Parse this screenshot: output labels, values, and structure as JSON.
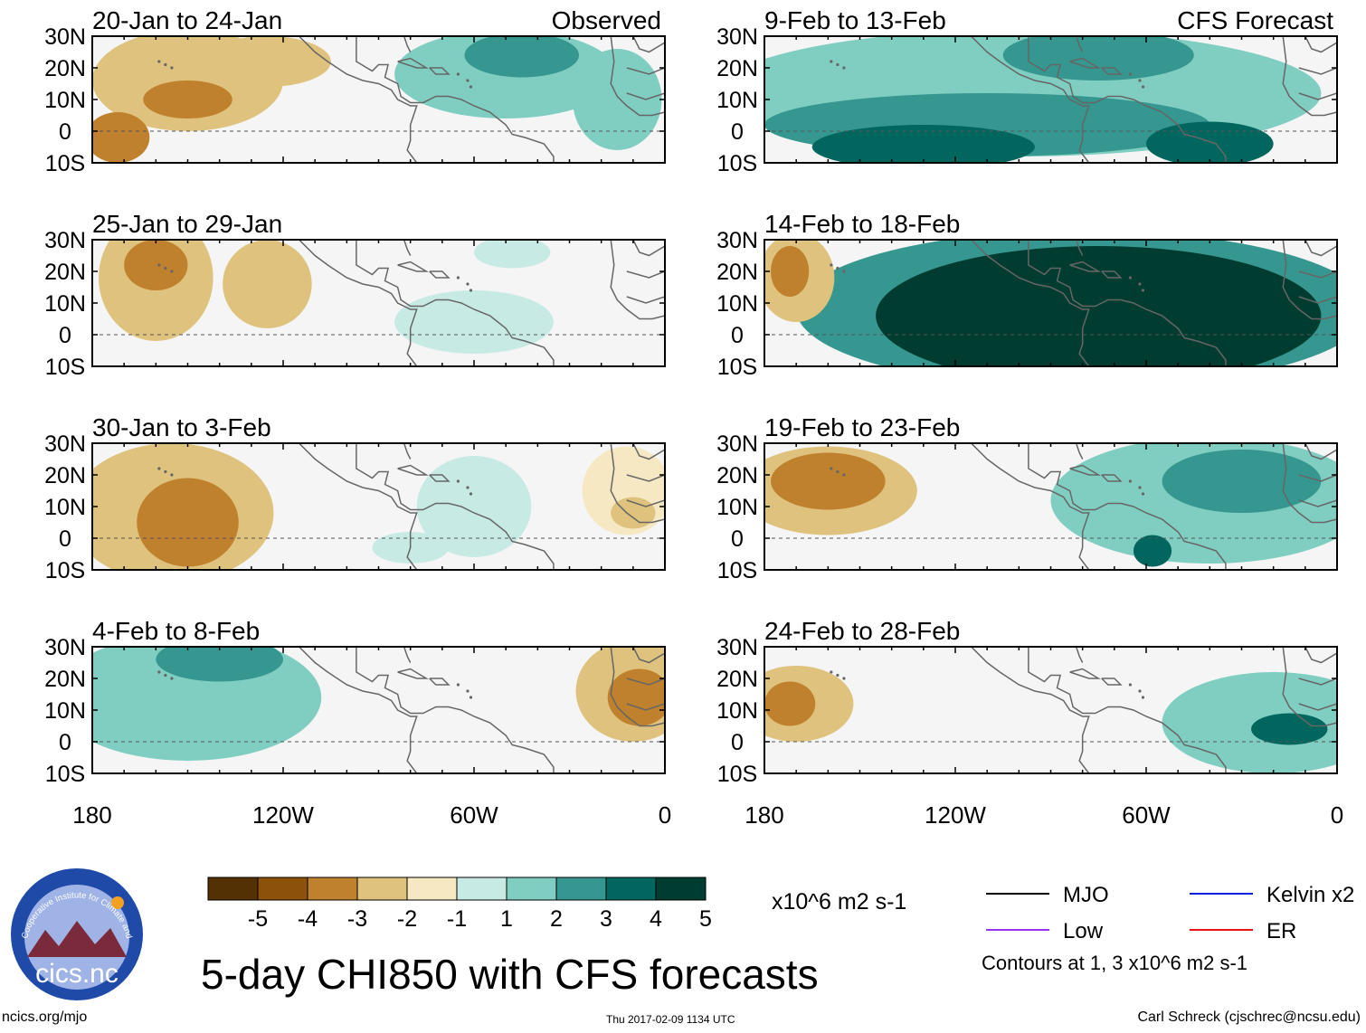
{
  "figure_title": "5-day CHI850 with CFS forecasts",
  "units": "x10^6 m2 s-1",
  "left_column_tag": "Observed",
  "right_column_tag": "CFS Forecast",
  "website": "ncics.org/mjo",
  "timestamp": "Thu 2017-02-09 1134 UTC",
  "author": "Carl Schreck (cjschrec@ncsu.edu)",
  "logo_text": "cics.nc",
  "logo_ring_text": "Cooperative Institute for Climate and Satellites",
  "lat_labels": [
    "30N",
    "20N",
    "10N",
    "0",
    "10S"
  ],
  "lon_labels": [
    "180",
    "120W",
    "60W",
    "0"
  ],
  "colorbar": {
    "colors": [
      "#543005",
      "#8c510a",
      "#bf812d",
      "#dfc27d",
      "#f6e8c3",
      "#f5f5f5",
      "#c7eae5",
      "#80cdc1",
      "#35978f",
      "#01665e",
      "#003c30"
    ],
    "labels": [
      "-5",
      "-4",
      "-3",
      "-2",
      "-1",
      "1",
      "2",
      "3",
      "4",
      "5"
    ]
  },
  "legend": {
    "items": [
      {
        "label": "MJO",
        "color": "#000000"
      },
      {
        "label": "Kelvin x2",
        "color": "#0022dd"
      },
      {
        "label": "Low",
        "color": "#9933ee"
      },
      {
        "label": "ER",
        "color": "#ee1111"
      }
    ],
    "contour_note": "Contours at 1, 3 x10^6 m2 s-1"
  },
  "panels": [
    {
      "id": "p1",
      "period": "20-Jan to 24-Jan",
      "type": "Observed",
      "blobs": [
        {
          "lon": -150,
          "lat": 16,
          "rx": 30,
          "ry": 16,
          "level": -2
        },
        {
          "lon": -150,
          "lat": 10,
          "rx": 14,
          "ry": 6,
          "level": -3
        },
        {
          "lon": -172,
          "lat": -2,
          "rx": 10,
          "ry": 8,
          "level": -3
        },
        {
          "lon": -125,
          "lat": 22,
          "rx": 20,
          "ry": 8,
          "level": -2
        },
        {
          "lon": -50,
          "lat": 18,
          "rx": 35,
          "ry": 14,
          "level": 2
        },
        {
          "lon": -45,
          "lat": 24,
          "rx": 18,
          "ry": 7,
          "level": 3
        },
        {
          "lon": -15,
          "lat": 10,
          "rx": 14,
          "ry": 16,
          "level": 2
        }
      ]
    },
    {
      "id": "p2",
      "period": "25-Jan to 29-Jan",
      "type": "Observed",
      "blobs": [
        {
          "lon": -160,
          "lat": 18,
          "rx": 18,
          "ry": 20,
          "level": -2
        },
        {
          "lon": -160,
          "lat": 22,
          "rx": 10,
          "ry": 8,
          "level": -3
        },
        {
          "lon": -125,
          "lat": 16,
          "rx": 14,
          "ry": 14,
          "level": -2
        },
        {
          "lon": -60,
          "lat": 4,
          "rx": 25,
          "ry": 10,
          "level": 1
        },
        {
          "lon": -48,
          "lat": 26,
          "rx": 12,
          "ry": 5,
          "level": 1
        }
      ]
    },
    {
      "id": "p3",
      "period": "30-Jan to 3-Feb",
      "type": "Observed",
      "blobs": [
        {
          "lon": -155,
          "lat": 8,
          "rx": 32,
          "ry": 22,
          "level": -2
        },
        {
          "lon": -150,
          "lat": 5,
          "rx": 16,
          "ry": 14,
          "level": -3
        },
        {
          "lon": -60,
          "lat": 10,
          "rx": 18,
          "ry": 16,
          "level": 1
        },
        {
          "lon": -80,
          "lat": -3,
          "rx": 12,
          "ry": 5,
          "level": 1
        },
        {
          "lon": -12,
          "lat": 15,
          "rx": 14,
          "ry": 14,
          "level": -1
        },
        {
          "lon": -10,
          "lat": 8,
          "rx": 7,
          "ry": 5,
          "level": -2
        }
      ]
    },
    {
      "id": "p4",
      "period": "4-Feb to 8-Feb",
      "type": "Observed",
      "blobs": [
        {
          "lon": -150,
          "lat": 14,
          "rx": 42,
          "ry": 20,
          "level": 2
        },
        {
          "lon": -140,
          "lat": 26,
          "rx": 20,
          "ry": 7,
          "level": 3
        },
        {
          "lon": -10,
          "lat": 16,
          "rx": 18,
          "ry": 16,
          "level": -2
        },
        {
          "lon": -8,
          "lat": 14,
          "rx": 10,
          "ry": 9,
          "level": -3
        }
      ]
    },
    {
      "id": "p5",
      "period": "9-Feb to 13-Feb",
      "type": "CFS Forecast",
      "blobs": [
        {
          "lon": -100,
          "lat": 12,
          "rx": 95,
          "ry": 20,
          "level": 2
        },
        {
          "lon": -110,
          "lat": 2,
          "rx": 70,
          "ry": 10,
          "level": 3
        },
        {
          "lon": -130,
          "lat": -5,
          "rx": 35,
          "ry": 7,
          "level": 4
        },
        {
          "lon": -40,
          "lat": -4,
          "rx": 20,
          "ry": 7,
          "level": 4
        },
        {
          "lon": -75,
          "lat": 24,
          "rx": 30,
          "ry": 8,
          "level": 3
        }
      ]
    },
    {
      "id": "p6",
      "period": "14-Feb to 18-Feb",
      "type": "CFS Forecast",
      "blobs": [
        {
          "lon": -80,
          "lat": 8,
          "rx": 90,
          "ry": 25,
          "level": 3
        },
        {
          "lon": -75,
          "lat": 6,
          "rx": 70,
          "ry": 22,
          "level": 5
        },
        {
          "lon": -170,
          "lat": 18,
          "rx": 12,
          "ry": 14,
          "level": -2
        },
        {
          "lon": -172,
          "lat": 20,
          "rx": 6,
          "ry": 8,
          "level": -3
        }
      ]
    },
    {
      "id": "p7",
      "period": "19-Feb to 23-Feb",
      "type": "CFS Forecast",
      "blobs": [
        {
          "lon": -160,
          "lat": 15,
          "rx": 28,
          "ry": 14,
          "level": -2
        },
        {
          "lon": -160,
          "lat": 18,
          "rx": 18,
          "ry": 9,
          "level": -3
        },
        {
          "lon": -40,
          "lat": 12,
          "rx": 50,
          "ry": 20,
          "level": 2
        },
        {
          "lon": -30,
          "lat": 18,
          "rx": 25,
          "ry": 10,
          "level": 3
        },
        {
          "lon": -58,
          "lat": -4,
          "rx": 6,
          "ry": 5,
          "level": 4
        }
      ]
    },
    {
      "id": "p8",
      "period": "24-Feb to 28-Feb",
      "type": "CFS Forecast",
      "blobs": [
        {
          "lon": -170,
          "lat": 12,
          "rx": 18,
          "ry": 12,
          "level": -2
        },
        {
          "lon": -172,
          "lat": 12,
          "rx": 8,
          "ry": 7,
          "level": -3
        },
        {
          "lon": -20,
          "lat": 6,
          "rx": 35,
          "ry": 16,
          "level": 2
        },
        {
          "lon": -15,
          "lat": 4,
          "rx": 12,
          "ry": 5,
          "level": 4
        }
      ]
    }
  ]
}
